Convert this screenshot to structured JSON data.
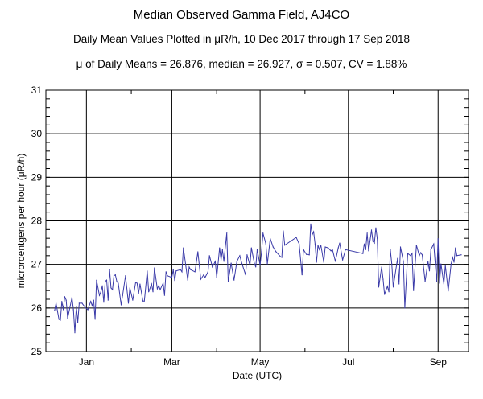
{
  "chart_data": {
    "type": "line",
    "title": "Median Observed Gamma Field, AJ4CO",
    "subtitle": "Daily Mean Values Plotted in μR/h, 10 Dec 2017 through 17 Sep 2018",
    "stats_line": "μ of Daily Means = 26.876,   median = 26.927,   σ = 0.507,   CV = 1.88%",
    "xlabel": "Date (UTC)",
    "ylabel": "microroentgens per hour (μR/h)",
    "ylim": [
      25,
      31
    ],
    "xlim": [
      "2017-12-04",
      "2018-09-22"
    ],
    "y_ticks": [
      "25",
      "26",
      "27",
      "28",
      "29",
      "30",
      "31"
    ],
    "x_ticks": [
      {
        "label": "Jan",
        "date": "2018-01-01"
      },
      {
        "label": "Mar",
        "date": "2018-03-01"
      },
      {
        "label": "May",
        "date": "2018-05-01"
      },
      {
        "label": "Jul",
        "date": "2018-07-01"
      },
      {
        "label": "Sep",
        "date": "2018-09-01"
      }
    ],
    "x_minor_ticks": [
      "2018-02-01",
      "2018-04-01",
      "2018-06-01",
      "2018-08-01"
    ],
    "grid": true,
    "line_color": "#3a3aa8",
    "series": [
      {
        "points": [
          [
            "2017-12-10",
            25.94
          ],
          [
            "2017-12-11",
            26.11
          ],
          [
            "2017-12-13",
            25.74
          ],
          [
            "2017-12-14",
            25.72
          ],
          [
            "2017-12-15",
            26.15
          ],
          [
            "2017-12-16",
            25.96
          ],
          [
            "2017-12-17",
            26.26
          ],
          [
            "2017-12-18",
            26.18
          ],
          [
            "2017-12-19",
            25.76
          ],
          [
            "2017-12-22",
            26.24
          ],
          [
            "2017-12-23",
            25.96
          ],
          [
            "2017-12-24",
            25.43
          ],
          [
            "2017-12-25",
            26.03
          ],
          [
            "2017-12-26",
            25.67
          ],
          [
            "2017-12-27",
            26.11
          ],
          [
            "2017-12-29",
            26.11
          ],
          [
            "2017-12-31",
            26.02
          ],
          [
            "2018-01-02",
            25.96
          ],
          [
            "2018-01-04",
            26.15
          ],
          [
            "2018-01-05",
            26.05
          ],
          [
            "2018-01-06",
            26.18
          ],
          [
            "2018-01-07",
            25.74
          ],
          [
            "2018-01-08",
            26.64
          ],
          [
            "2018-01-10",
            26.29
          ],
          [
            "2018-01-11",
            26.37
          ],
          [
            "2018-01-12",
            26.51
          ],
          [
            "2018-01-13",
            26.13
          ],
          [
            "2018-01-14",
            26.61
          ],
          [
            "2018-01-15",
            26.64
          ],
          [
            "2018-01-16",
            26.18
          ],
          [
            "2018-01-17",
            26.88
          ],
          [
            "2018-01-18",
            26.46
          ],
          [
            "2018-01-19",
            26.42
          ],
          [
            "2018-01-20",
            26.74
          ],
          [
            "2018-01-21",
            26.76
          ],
          [
            "2018-01-22",
            26.61
          ],
          [
            "2018-01-23",
            26.57
          ],
          [
            "2018-01-25",
            26.07
          ],
          [
            "2018-01-26",
            26.29
          ],
          [
            "2018-01-28",
            26.74
          ],
          [
            "2018-01-30",
            26.11
          ],
          [
            "2018-01-31",
            26.46
          ],
          [
            "2018-02-02",
            26.18
          ],
          [
            "2018-02-04",
            26.59
          ],
          [
            "2018-02-05",
            26.57
          ],
          [
            "2018-02-06",
            26.33
          ],
          [
            "2018-02-07",
            26.55
          ],
          [
            "2018-02-09",
            26.16
          ],
          [
            "2018-02-10",
            26.16
          ],
          [
            "2018-02-12",
            26.85
          ],
          [
            "2018-02-13",
            26.37
          ],
          [
            "2018-02-15",
            26.55
          ],
          [
            "2018-02-16",
            26.37
          ],
          [
            "2018-02-17",
            26.92
          ],
          [
            "2018-02-19",
            26.44
          ],
          [
            "2018-02-20",
            26.51
          ],
          [
            "2018-02-21",
            26.42
          ],
          [
            "2018-02-23",
            26.57
          ],
          [
            "2018-02-24",
            26.29
          ],
          [
            "2018-02-25",
            26.83
          ],
          [
            "2018-02-26",
            26.74
          ],
          [
            "2018-03-01",
            26.7
          ],
          [
            "2018-03-02",
            26.88
          ],
          [
            "2018-03-03",
            26.63
          ],
          [
            "2018-03-04",
            26.85
          ],
          [
            "2018-03-07",
            26.88
          ],
          [
            "2018-03-08",
            26.83
          ],
          [
            "2018-03-09",
            27.38
          ],
          [
            "2018-03-12",
            26.64
          ],
          [
            "2018-03-13",
            26.94
          ],
          [
            "2018-03-14",
            26.88
          ],
          [
            "2018-03-17",
            26.83
          ],
          [
            "2018-03-19",
            27.29
          ],
          [
            "2018-03-21",
            26.66
          ],
          [
            "2018-03-23",
            26.76
          ],
          [
            "2018-03-24",
            26.7
          ],
          [
            "2018-03-26",
            26.83
          ],
          [
            "2018-03-27",
            27.2
          ],
          [
            "2018-03-29",
            26.94
          ],
          [
            "2018-03-31",
            27.07
          ],
          [
            "2018-04-01",
            26.7
          ],
          [
            "2018-04-03",
            27.38
          ],
          [
            "2018-04-04",
            27.1
          ],
          [
            "2018-04-05",
            27.34
          ],
          [
            "2018-04-06",
            27.07
          ],
          [
            "2018-04-08",
            27.72
          ],
          [
            "2018-04-09",
            26.61
          ],
          [
            "2018-04-11",
            27.03
          ],
          [
            "2018-04-13",
            26.64
          ],
          [
            "2018-04-15",
            27.07
          ],
          [
            "2018-04-17",
            27.2
          ],
          [
            "2018-04-18",
            27.07
          ],
          [
            "2018-04-21",
            26.76
          ],
          [
            "2018-04-22",
            27.22
          ],
          [
            "2018-04-24",
            26.98
          ],
          [
            "2018-04-25",
            27.38
          ],
          [
            "2018-04-27",
            27.03
          ],
          [
            "2018-04-28",
            26.94
          ],
          [
            "2018-04-29",
            27.34
          ],
          [
            "2018-05-01",
            26.98
          ],
          [
            "2018-05-02",
            27.29
          ],
          [
            "2018-05-03",
            27.72
          ],
          [
            "2018-05-05",
            27.47
          ],
          [
            "2018-05-06",
            27.01
          ],
          [
            "2018-05-08",
            27.59
          ],
          [
            "2018-05-10",
            27.4
          ],
          [
            "2018-05-12",
            27.29
          ],
          [
            "2018-05-15",
            27.18
          ],
          [
            "2018-05-16",
            27.16
          ],
          [
            "2018-05-17",
            27.77
          ],
          [
            "2018-05-18",
            27.44
          ],
          [
            "2018-05-26",
            27.62
          ],
          [
            "2018-05-28",
            27.47
          ],
          [
            "2018-05-30",
            26.76
          ],
          [
            "2018-05-31",
            27.34
          ],
          [
            "2018-06-02",
            27.23
          ],
          [
            "2018-06-04",
            27.22
          ],
          [
            "2018-06-05",
            27.93
          ],
          [
            "2018-06-06",
            27.68
          ],
          [
            "2018-06-07",
            27.75
          ],
          [
            "2018-06-08",
            27.47
          ],
          [
            "2018-06-09",
            27.05
          ],
          [
            "2018-06-10",
            27.44
          ],
          [
            "2018-06-11",
            27.34
          ],
          [
            "2018-06-12",
            27.44
          ],
          [
            "2018-06-14",
            27.05
          ],
          [
            "2018-06-15",
            27.4
          ],
          [
            "2018-06-17",
            27.38
          ],
          [
            "2018-06-19",
            27.31
          ],
          [
            "2018-06-20",
            27.34
          ],
          [
            "2018-06-22",
            27.07
          ],
          [
            "2018-06-24",
            27.38
          ],
          [
            "2018-06-25",
            27.49
          ],
          [
            "2018-06-27",
            27.1
          ],
          [
            "2018-06-29",
            27.34
          ],
          [
            "2018-07-11",
            27.25
          ],
          [
            "2018-07-12",
            27.47
          ],
          [
            "2018-07-13",
            27.34
          ],
          [
            "2018-07-14",
            27.72
          ],
          [
            "2018-07-15",
            27.31
          ],
          [
            "2018-07-17",
            27.79
          ],
          [
            "2018-07-18",
            27.53
          ],
          [
            "2018-07-19",
            27.49
          ],
          [
            "2018-07-20",
            27.84
          ],
          [
            "2018-07-21",
            27.59
          ],
          [
            "2018-07-22",
            26.48
          ],
          [
            "2018-07-24",
            26.94
          ],
          [
            "2018-07-25",
            26.66
          ],
          [
            "2018-07-26",
            26.31
          ],
          [
            "2018-07-28",
            26.5
          ],
          [
            "2018-07-29",
            26.37
          ],
          [
            "2018-07-30",
            27.34
          ],
          [
            "2018-07-31",
            27.01
          ],
          [
            "2018-08-01",
            26.48
          ],
          [
            "2018-08-04",
            27.14
          ],
          [
            "2018-08-05",
            26.55
          ],
          [
            "2018-08-06",
            27.4
          ],
          [
            "2018-08-08",
            27.07
          ],
          [
            "2018-08-09",
            26.0
          ],
          [
            "2018-08-11",
            27.25
          ],
          [
            "2018-08-13",
            27.2
          ],
          [
            "2018-08-14",
            27.25
          ],
          [
            "2018-08-15",
            26.4
          ],
          [
            "2018-08-17",
            27.44
          ],
          [
            "2018-08-19",
            27.2
          ],
          [
            "2018-08-20",
            27.27
          ],
          [
            "2018-08-21",
            27.22
          ],
          [
            "2018-08-23",
            26.61
          ],
          [
            "2018-08-25",
            27.07
          ],
          [
            "2018-08-26",
            26.85
          ],
          [
            "2018-08-27",
            27.34
          ],
          [
            "2018-08-29",
            27.47
          ],
          [
            "2018-08-31",
            26.61
          ],
          [
            "2018-09-01",
            27.59
          ],
          [
            "2018-09-02",
            26.57
          ],
          [
            "2018-09-03",
            27.01
          ],
          [
            "2018-09-05",
            26.55
          ],
          [
            "2018-09-06",
            26.98
          ],
          [
            "2018-09-08",
            26.39
          ],
          [
            "2018-09-10",
            27.01
          ],
          [
            "2018-09-11",
            27.16
          ],
          [
            "2018-09-12",
            27.05
          ],
          [
            "2018-09-13",
            27.38
          ],
          [
            "2018-09-14",
            27.2
          ],
          [
            "2018-09-17",
            27.22
          ]
        ]
      }
    ]
  }
}
